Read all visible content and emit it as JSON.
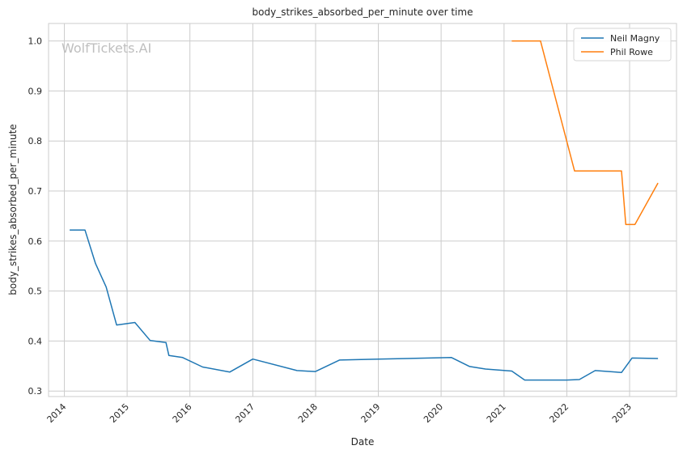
{
  "chart_data": {
    "type": "line",
    "title": "body_strikes_absorbed_per_minute over time",
    "xlabel": "Date",
    "ylabel": "body_strikes_absorbed_per_minute",
    "watermark": "WolfTickets.AI",
    "xlim": [
      "2013-10-01",
      "2023-10-01"
    ],
    "ylim": [
      0.289,
      1.035
    ],
    "x_ticks": [
      "2014",
      "2015",
      "2016",
      "2017",
      "2018",
      "2019",
      "2020",
      "2021",
      "2022",
      "2023"
    ],
    "y_ticks": [
      0.3,
      0.4,
      0.5,
      0.6,
      0.7,
      0.8,
      0.9,
      1.0
    ],
    "y_tick_labels": [
      "0.3",
      "0.4",
      "0.5",
      "0.6",
      "0.7",
      "0.8",
      "0.9",
      "1.0"
    ],
    "grid": true,
    "legend_position": "top-right",
    "series": [
      {
        "name": "Neil Magny",
        "color": "#1f77b4",
        "points": [
          [
            "2014-02-01",
            0.622
          ],
          [
            "2014-05-01",
            0.622
          ],
          [
            "2014-07-01",
            0.555
          ],
          [
            "2014-09-01",
            0.508
          ],
          [
            "2014-11-01",
            0.432
          ],
          [
            "2015-02-15",
            0.437
          ],
          [
            "2015-05-15",
            0.401
          ],
          [
            "2015-08-15",
            0.397
          ],
          [
            "2015-09-01",
            0.371
          ],
          [
            "2015-11-20",
            0.367
          ],
          [
            "2016-03-15",
            0.348
          ],
          [
            "2016-08-20",
            0.338
          ],
          [
            "2017-01-01",
            0.364
          ],
          [
            "2017-09-15",
            0.341
          ],
          [
            "2017-12-31",
            0.339
          ],
          [
            "2018-05-20",
            0.362
          ],
          [
            "2019-01-01",
            0.364
          ],
          [
            "2020-03-01",
            0.367
          ],
          [
            "2020-06-15",
            0.349
          ],
          [
            "2020-09-15",
            0.344
          ],
          [
            "2021-02-15",
            0.34
          ],
          [
            "2021-05-01",
            0.322
          ],
          [
            "2022-01-01",
            0.322
          ],
          [
            "2022-03-15",
            0.323
          ],
          [
            "2022-06-15",
            0.341
          ],
          [
            "2022-11-15",
            0.337
          ],
          [
            "2023-01-15",
            0.366
          ],
          [
            "2023-06-15",
            0.365
          ]
        ]
      },
      {
        "name": "Phil Rowe",
        "color": "#ff7f0e",
        "points": [
          [
            "2021-02-15",
            1.0
          ],
          [
            "2021-08-01",
            1.0
          ],
          [
            "2022-02-15",
            0.74
          ],
          [
            "2022-11-15",
            0.74
          ],
          [
            "2022-12-10",
            0.633
          ],
          [
            "2023-02-01",
            0.633
          ],
          [
            "2023-06-15",
            0.716
          ]
        ]
      }
    ]
  }
}
